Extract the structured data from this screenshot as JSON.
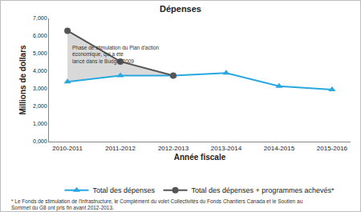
{
  "chart_data": {
    "type": "line",
    "title": "Dépenses",
    "x_label": "Année fiscale",
    "y_label": "Millions de dollars",
    "categories": [
      "2010-2011",
      "2011-2012",
      "2012-2013",
      "2013-2014",
      "2014-2015",
      "2015-2016"
    ],
    "series": [
      {
        "name": "Total des dépenses",
        "color": "#29a8e0",
        "marker": "triangle-up",
        "line_style": "solid",
        "values": [
          3400,
          3750,
          3750,
          3900,
          3150,
          2950
        ]
      },
      {
        "name": "Total des dépenses + programmes achevés*",
        "color": "#555555",
        "marker": "circle",
        "line_style": "solid",
        "values": [
          6300,
          4550,
          3750,
          null,
          null,
          null
        ]
      }
    ],
    "ylim": [
      0,
      7000
    ],
    "yticks": [
      {
        "value": 0,
        "label": "0,000"
      },
      {
        "value": 1000,
        "label": "1,000"
      },
      {
        "value": 2000,
        "label": "2,000"
      },
      {
        "value": 3000,
        "label": "3,000"
      },
      {
        "value": 4000,
        "label": "4,000"
      },
      {
        "value": 5000,
        "label": "5,000"
      },
      {
        "value": 6000,
        "label": "6,000"
      },
      {
        "value": 7000,
        "label": "7,000"
      }
    ],
    "grid": false,
    "legend": "bottom",
    "annotation_lines": [
      "Phase de stimulation du Plan d'action",
      "économique, qui a été",
      "lancé dans le Budget 2009"
    ],
    "footnote_lines": [
      "* Le Fonds de stimulation de l'infrastructure, le Complément du volet Collectivités du Fonds Chantiers Canada et le Soutien au",
      "Sommet du G8 ont pris fin avant 2012-2013."
    ]
  }
}
